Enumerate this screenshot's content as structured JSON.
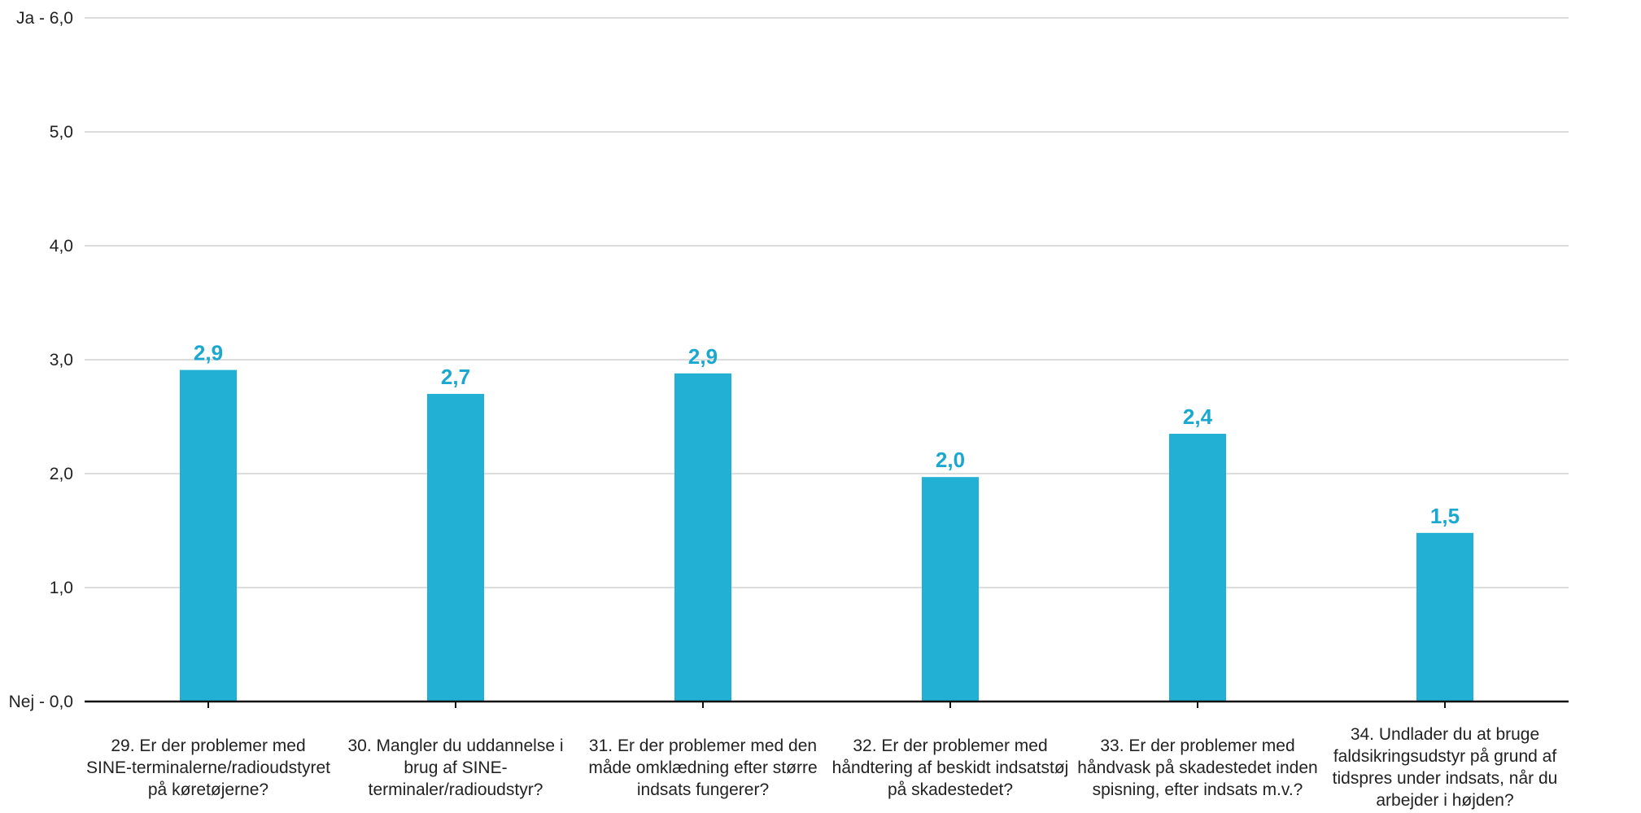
{
  "chart_data": {
    "type": "bar",
    "title": "",
    "xlabel": "",
    "ylabel": "",
    "ylim": [
      0,
      6
    ],
    "yticks": [
      {
        "value": 0,
        "label": "Nej - 0,0"
      },
      {
        "value": 1,
        "label": "1,0"
      },
      {
        "value": 2,
        "label": "2,0"
      },
      {
        "value": 3,
        "label": "3,0"
      },
      {
        "value": 4,
        "label": "4,0"
      },
      {
        "value": 5,
        "label": "5,0"
      },
      {
        "value": 6,
        "label": "Ja - 6,0"
      }
    ],
    "grid": true,
    "bar_color": "#22b0d5",
    "label_color": "#1aa8d0",
    "categories": [
      "29. Er der problemer med SINE-terminalerne/radioudstyret på køretøjerne?",
      "30. Mangler du uddannelse i brug af SINE-terminaler/radioudstyr?",
      "31. Er  der problemer med den måde omklædning efter større indsats fungerer?",
      "32. Er der problemer med håndtering af beskidt indsatstøj på skadestedet?",
      "33. Er der problemer med håndvask på skadestedet inden spisning, efter indsats m.v.?",
      "34. Undlader du at bruge faldsikringsudstyr på grund af tidspres under indsats, når du arbejder i højden?"
    ],
    "values": [
      2.91,
      2.7,
      2.88,
      1.97,
      2.35,
      1.48
    ],
    "data_labels": [
      "2,9",
      "2,7",
      "2,9",
      "2,0",
      "2,4",
      "1,5"
    ]
  }
}
